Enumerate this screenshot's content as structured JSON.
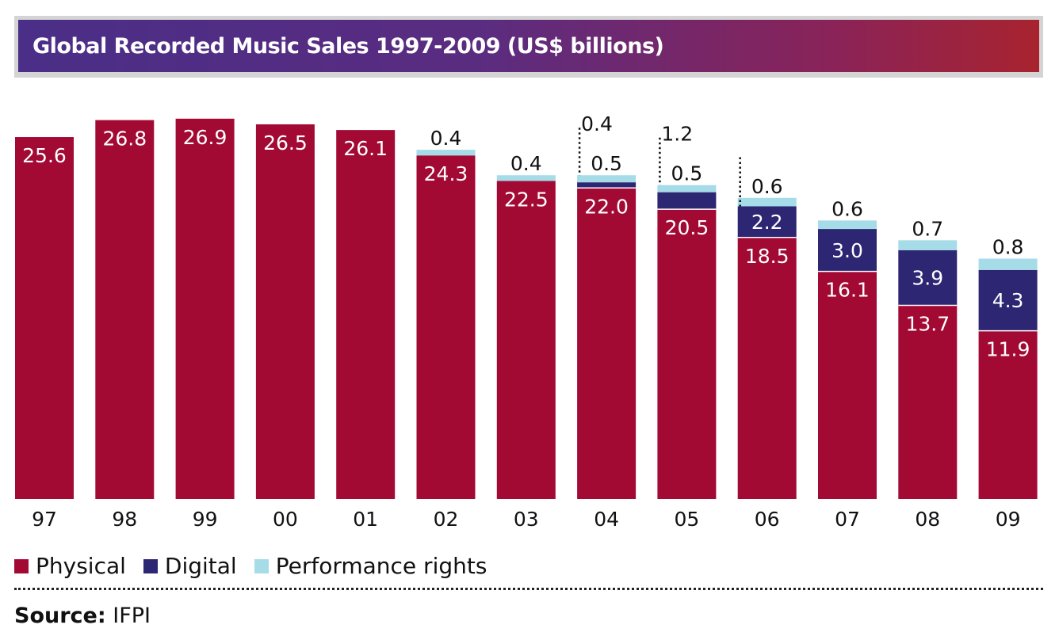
{
  "title": "Global Recorded Music Sales 1997-2009 (US$ billions)",
  "source_label": "Source:",
  "source_value": "IFPI",
  "colors": {
    "physical": "#a20a34",
    "digital": "#2c2673",
    "performance": "#a6dbe8"
  },
  "legend": [
    {
      "label": "Physical",
      "color": "#a20a34"
    },
    {
      "label": "Digital",
      "color": "#2c2673"
    },
    {
      "label": "Performance rights",
      "color": "#a6dbe8"
    }
  ],
  "chart_data": {
    "type": "bar",
    "stacked": true,
    "title": "Global Recorded Music Sales 1997-2009 (US$ billions)",
    "categories": [
      "97",
      "98",
      "99",
      "00",
      "01",
      "02",
      "03",
      "04",
      "05",
      "06",
      "07",
      "08",
      "09"
    ],
    "series": [
      {
        "name": "Physical",
        "values": [
          25.6,
          26.8,
          26.9,
          26.5,
          26.1,
          24.3,
          22.5,
          22.0,
          20.5,
          18.5,
          16.1,
          13.7,
          11.9
        ]
      },
      {
        "name": "Digital",
        "values": [
          0,
          0,
          0,
          0,
          0,
          0,
          0,
          0.4,
          1.2,
          2.2,
          3.0,
          3.9,
          4.3
        ]
      },
      {
        "name": "Performance rights",
        "values": [
          0,
          0,
          0,
          0,
          0,
          0.4,
          0.4,
          0.5,
          0.5,
          0.6,
          0.6,
          0.7,
          0.8
        ]
      }
    ],
    "grid": false,
    "legend_position": "bottom-left"
  }
}
